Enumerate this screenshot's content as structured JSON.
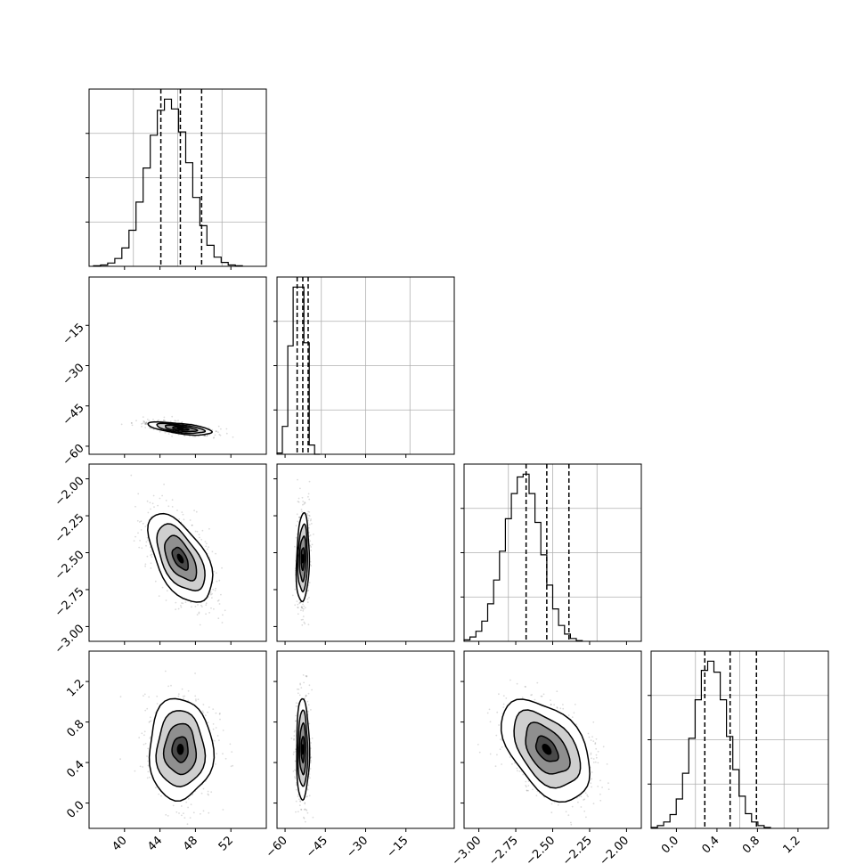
{
  "chart_data": {
    "type": "corner",
    "parameters": 4,
    "axes": [
      {
        "range": [
          36,
          56
        ],
        "ticks": [
          40,
          44,
          48,
          52
        ],
        "tick_labels": [
          "40",
          "44",
          "48",
          "52"
        ]
      },
      {
        "range": [
          -63,
          3
        ],
        "ticks": [
          -60,
          -45,
          -30,
          -15
        ],
        "tick_labels": [
          "−60",
          "−45",
          "−30",
          "−15"
        ]
      },
      {
        "range": [
          -3.1,
          -1.9
        ],
        "ticks": [
          -3.0,
          -2.75,
          -2.5,
          -2.25,
          -2.0
        ],
        "tick_labels": [
          "−3.00",
          "−2.75",
          "−2.50",
          "−2.25",
          "−2.00"
        ]
      },
      {
        "range": [
          -0.25,
          1.5
        ],
        "ticks": [
          0.0,
          0.4,
          0.8,
          1.2
        ],
        "tick_labels": [
          "0.0",
          "0.4",
          "0.8",
          "1.2"
        ]
      }
    ],
    "quantiles": [
      [
        44.1,
        46.3,
        48.7
      ],
      [
        -55.5,
        -53.4,
        -51.4
      ],
      [
        -2.68,
        -2.54,
        -2.39
      ],
      [
        0.28,
        0.53,
        0.79
      ]
    ],
    "marginals": [
      {
        "bin_start": 36.5,
        "bin_width": 0.8,
        "counts": [
          1,
          2,
          5,
          12,
          28,
          55,
          98,
          150,
          200,
          238,
          255,
          240,
          205,
          158,
          105,
          62,
          32,
          14,
          6,
          2,
          1
        ]
      },
      {
        "bin_start": -63,
        "bin_width": 2,
        "counts": [
          2,
          45,
          175,
          270,
          270,
          180,
          15,
          0
        ]
      },
      {
        "bin_start": -3.1,
        "bin_width": 0.04,
        "counts": [
          2,
          6,
          14,
          28,
          52,
          85,
          125,
          170,
          205,
          228,
          232,
          205,
          165,
          120,
          78,
          45,
          22,
          10,
          4,
          1
        ]
      },
      {
        "bin_start": -0.25,
        "bin_width": 0.062,
        "counts": [
          1,
          3,
          7,
          15,
          32,
          60,
          98,
          140,
          172,
          182,
          170,
          140,
          100,
          64,
          35,
          16,
          7,
          3,
          1
        ]
      }
    ],
    "joint": [
      {
        "row": 1,
        "col": 0,
        "mean": [
          46.3,
          -53.4
        ],
        "sd": [
          1.8,
          1.2
        ],
        "corr": -0.6
      },
      {
        "row": 2,
        "col": 0,
        "mean": [
          46.3,
          -2.54
        ],
        "sd": [
          1.8,
          0.15
        ],
        "corr": -0.55
      },
      {
        "row": 2,
        "col": 1,
        "mean": [
          -53.4,
          -2.54
        ],
        "sd": [
          1.2,
          0.15
        ],
        "corr": 0.15
      },
      {
        "row": 3,
        "col": 0,
        "mean": [
          46.3,
          0.53
        ],
        "sd": [
          1.8,
          0.25
        ],
        "corr": 0.0
      },
      {
        "row": 3,
        "col": 1,
        "mean": [
          -53.4,
          0.53
        ],
        "sd": [
          1.2,
          0.25
        ],
        "corr": 0.0
      },
      {
        "row": 3,
        "col": 2,
        "mean": [
          -2.54,
          0.53
        ],
        "sd": [
          0.15,
          0.25
        ],
        "corr": -0.45
      }
    ],
    "contour_levels": [
      0.5,
      1.0,
      1.5,
      2.0
    ],
    "grid": true
  }
}
